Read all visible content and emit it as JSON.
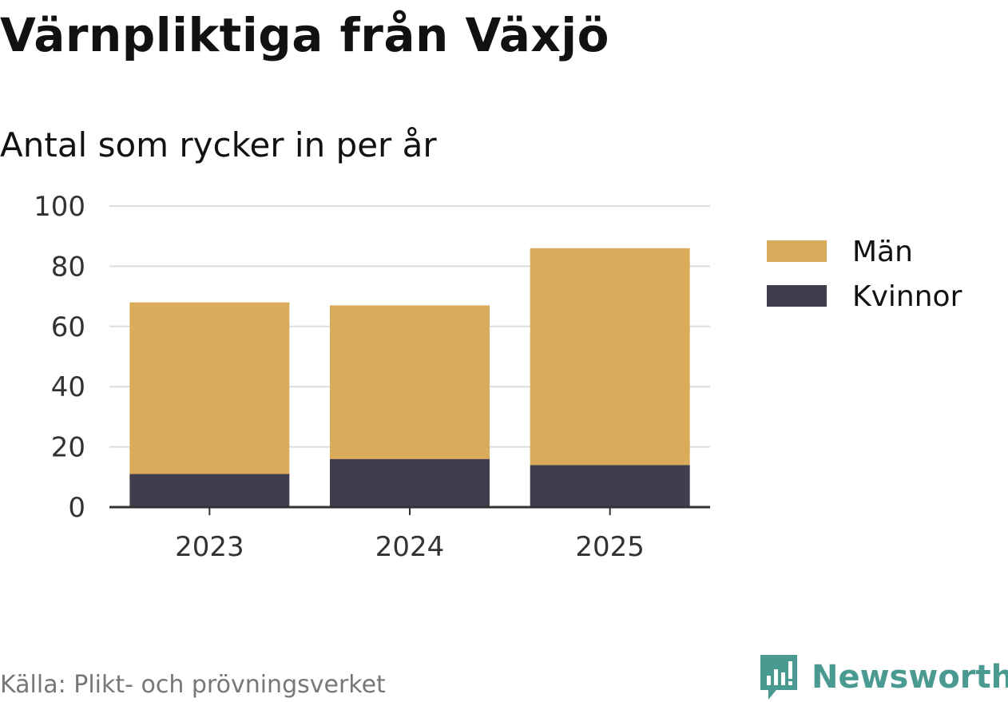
{
  "chart_data": {
    "type": "bar",
    "stacked": true,
    "title": "Värnpliktiga från Växjö",
    "subtitle": "Antal som rycker in per år",
    "categories": [
      "2023",
      "2024",
      "2025"
    ],
    "series": [
      {
        "name": "Kvinnor",
        "values": [
          11,
          16,
          14
        ],
        "color": "#403e4d"
      },
      {
        "name": "Män",
        "values": [
          57,
          51,
          72
        ],
        "color": "#d9ab5b"
      }
    ],
    "ylim": [
      0,
      100
    ],
    "yticks": [
      0,
      20,
      40,
      60,
      80,
      100
    ],
    "grid": true,
    "legend_position": "right",
    "legend_order": [
      "Män",
      "Kvinnor"
    ]
  },
  "footer": {
    "source": "Källa: Plikt- och prövningsverket",
    "brand": "Newsworthy",
    "brand_color": "#4a9a91"
  },
  "icons": {
    "logo": "bar-chart-speech-icon"
  }
}
